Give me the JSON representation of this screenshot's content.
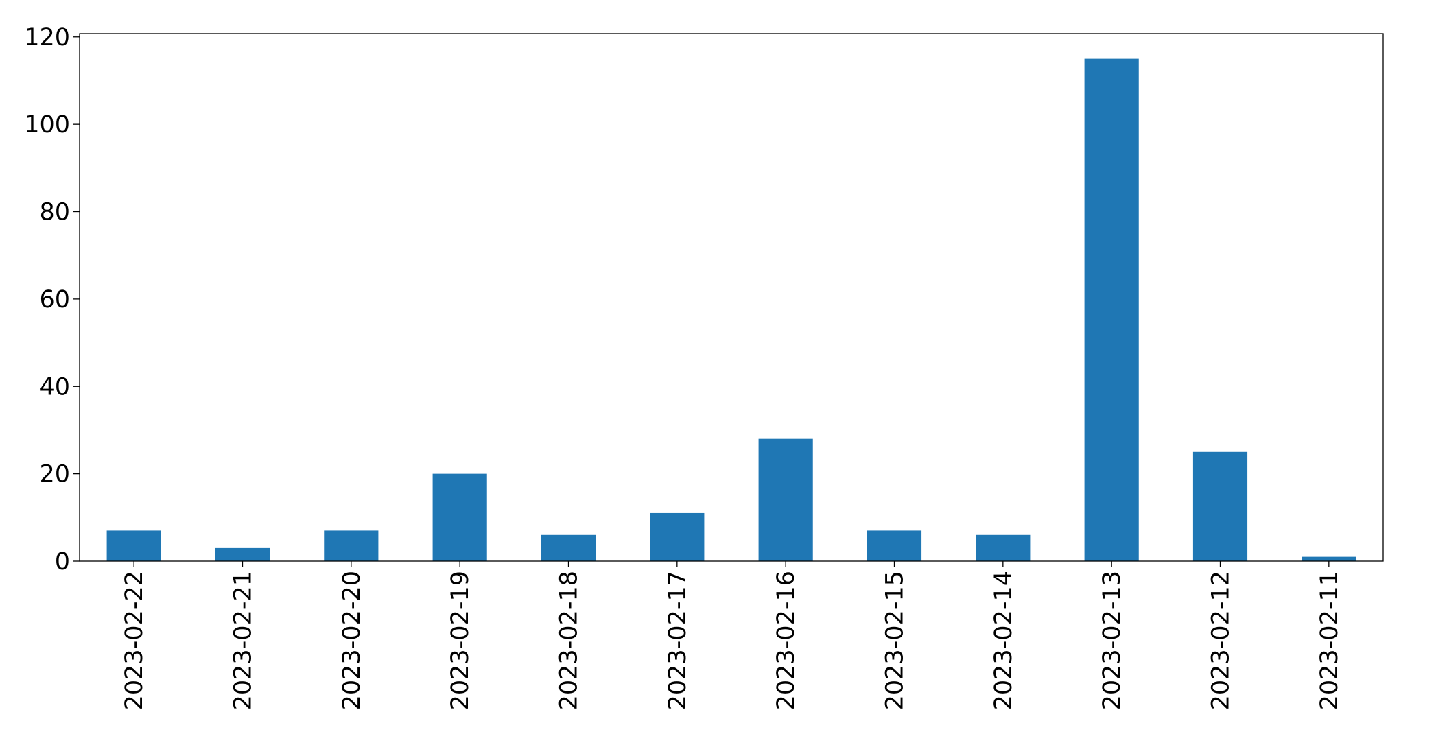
{
  "chart_data": {
    "type": "bar",
    "categories": [
      "2023-02-22",
      "2023-02-21",
      "2023-02-20",
      "2023-02-19",
      "2023-02-18",
      "2023-02-17",
      "2023-02-16",
      "2023-02-15",
      "2023-02-14",
      "2023-02-13",
      "2023-02-12",
      "2023-02-11"
    ],
    "values": [
      7,
      3,
      7,
      20,
      6,
      11,
      28,
      7,
      6,
      115,
      25,
      1
    ],
    "color": "#1f77b4",
    "ylim": [
      0,
      120.75
    ],
    "yticks": [
      0,
      20,
      40,
      60,
      80,
      100,
      120
    ],
    "grid": false
  }
}
